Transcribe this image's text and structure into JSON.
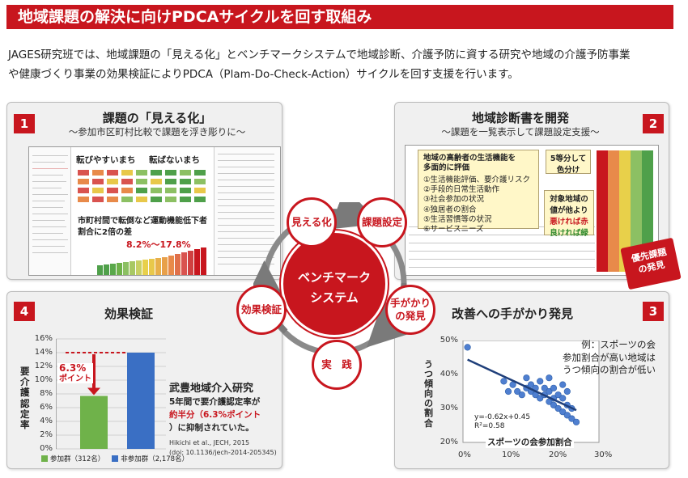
{
  "header": {
    "title": "地域課題の解決に向けPDCAサイクルを回す取組み",
    "intro_line1": "JAGES研究班では、地域課題の「見える化」とベンチマークシステムで地域診断、介護予防に資する研究や地域の介護予防事業",
    "intro_line2": "や健康づくり事業の効果検証によりPDCA（Plam-Do-Check-Action）サイクルを回す支援を行います。"
  },
  "panel1": {
    "number": "1",
    "title": "課題の「見える化」",
    "subtitle": "～参加市区町村比較で課題を浮き彫りに～",
    "label_easy": "転びやすいまち",
    "label_hard": "転ばないまち",
    "note_line1": "市町村間で転倒など運動機能低下者",
    "note_line2": "割合に2倍の差",
    "range": "8.2%～17.8%"
  },
  "panel2": {
    "number": "2",
    "title": "地域診断書を開発",
    "subtitle": "～課題を一覧表示して課題設定支援～",
    "box_head1": "地域の高齢者の生活機能を",
    "box_head2": "多面的に評価",
    "items": [
      "①生活機能評価、要介護リスク",
      "②手段的日常生活動作",
      "③社会参加の状況",
      "④独居者の割合",
      "⑤生活習慣等の状況",
      "⑥サービスニーズ"
    ],
    "grade_line1": "5等分して",
    "grade_line2": "色分け",
    "target_line1": "対象地域の",
    "target_line2": "値が他より",
    "bad": "悪ければ赤",
    "good": "良ければ緑",
    "priority_line1": "優先課題",
    "priority_line2": "の発見"
  },
  "panel3": {
    "number": "3",
    "title": "改善への手がかり発見",
    "example_line1": "例：スポーツの会",
    "example_line2": "参加割合が高い地域は",
    "example_line3": "うつ傾向の割合が低い",
    "ylabel": "うつ傾向の割合",
    "xlabel": "スポーツの会参加割合",
    "equation": "y=-0.62x+0.45",
    "r2": "R²=0.58",
    "yticks": [
      "50%",
      "40%",
      "30%",
      "20%"
    ],
    "xticks": [
      "0%",
      "10%",
      "20%",
      "30%"
    ]
  },
  "panel4": {
    "number": "4",
    "title": "効果検証",
    "ylabel": "要介護認定率",
    "yticks": [
      "16%",
      "14%",
      "12%",
      "10%",
      "8%",
      "6%",
      "4%",
      "2%",
      "0%"
    ],
    "diff_line1": "6.3%",
    "diff_line2": "ポイント",
    "study_title": "武豊地域介入研究",
    "study_line1": "5年間で要介護認定率が",
    "study_line2": "約半分（6.3%ポイント",
    "study_line3": "）に抑制されていた。",
    "citation1": "Hikichi et al., JECH, 2015",
    "citation2": "(doi: 10.1136/jech-2014-205345)",
    "legend_part": "参加群（312名）",
    "legend_nonpart": "非参加群（2,178名）"
  },
  "cycle": {
    "hub_line1": "ベンチマーク",
    "hub_line2": "システム",
    "node_visible": "見える化",
    "node_issue": "課題設定",
    "node_clue_1": "手がかり",
    "node_clue_2": "の発見",
    "node_practice": "実　践",
    "node_effect": "効果検証"
  },
  "chart_data": [
    {
      "type": "bar",
      "categories": [
        "参加群（312名）",
        "非参加群（2,178名）"
      ],
      "values": [
        7.7,
        14.0
      ],
      "ylabel": "要介護認定率",
      "ylim": [
        0,
        16
      ],
      "colors": [
        "#6fb24a",
        "#3a6fc4"
      ],
      "annotations": [
        "6.3%ポイント"
      ]
    },
    {
      "type": "scatter",
      "xlabel": "スポーツの会参加割合",
      "ylabel": "うつ傾向の割合",
      "xlim": [
        0,
        30
      ],
      "ylim": [
        20,
        50
      ],
      "points": [
        [
          1,
          48
        ],
        [
          9,
          38
        ],
        [
          10,
          35
        ],
        [
          11,
          37
        ],
        [
          12,
          35
        ],
        [
          13,
          34
        ],
        [
          14,
          36
        ],
        [
          14,
          39
        ],
        [
          15,
          35
        ],
        [
          15,
          37
        ],
        [
          16,
          34
        ],
        [
          16,
          36
        ],
        [
          17,
          33
        ],
        [
          17,
          38
        ],
        [
          18,
          36
        ],
        [
          18,
          34
        ],
        [
          19,
          32
        ],
        [
          19,
          35
        ],
        [
          19,
          39
        ],
        [
          20,
          31
        ],
        [
          20,
          33
        ],
        [
          20,
          36
        ],
        [
          21,
          30
        ],
        [
          21,
          34
        ],
        [
          22,
          29
        ],
        [
          22,
          33
        ],
        [
          22,
          37
        ],
        [
          23,
          28
        ],
        [
          23,
          31
        ],
        [
          23,
          35
        ],
        [
          24,
          27
        ],
        [
          24,
          30
        ],
        [
          25,
          26
        ]
      ],
      "trendline": {
        "slope": -0.62,
        "intercept": 0.45
      },
      "annotations": [
        "y=-0.62x+0.45",
        "R²=0.58"
      ]
    }
  ],
  "colors": {
    "brand_red": "#c8161e",
    "green": "#6fb24a",
    "blue": "#3a6fc4",
    "panel_bg": "#f0f0f0"
  }
}
